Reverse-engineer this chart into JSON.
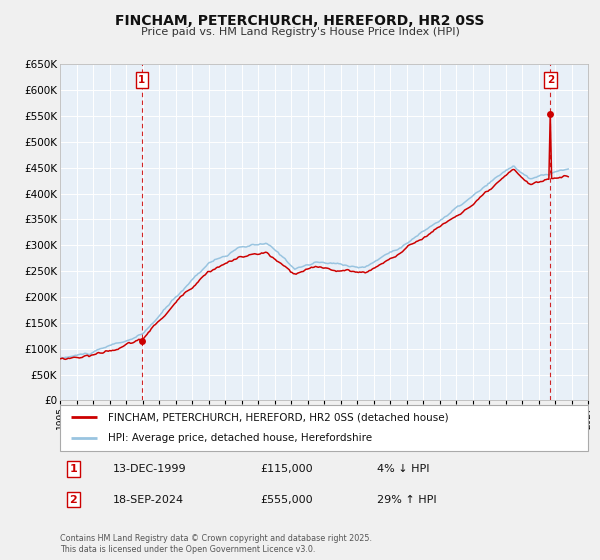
{
  "title": "FINCHAM, PETERCHURCH, HEREFORD, HR2 0SS",
  "subtitle": "Price paid vs. HM Land Registry's House Price Index (HPI)",
  "legend_line1": "FINCHAM, PETERCHURCH, HEREFORD, HR2 0SS (detached house)",
  "legend_line2": "HPI: Average price, detached house, Herefordshire",
  "annotation1_label": "1",
  "annotation1_date": "13-DEC-1999",
  "annotation1_price": "£115,000",
  "annotation1_hpi": "4% ↓ HPI",
  "annotation2_label": "2",
  "annotation2_date": "18-SEP-2024",
  "annotation2_price": "£555,000",
  "annotation2_hpi": "29% ↑ HPI",
  "footer_line1": "Contains HM Land Registry data © Crown copyright and database right 2025.",
  "footer_line2": "This data is licensed under the Open Government Licence v3.0.",
  "price_color": "#cc0000",
  "hpi_color": "#99c4e0",
  "fig_bg_color": "#f0f0f0",
  "plot_bg_color": "#e8f0f8",
  "annotation_box_color": "#cc0000",
  "vline_color": "#cc0000",
  "grid_color": "#ffffff",
  "ylim_max": 650000,
  "ylim_min": 0,
  "xmin": 1995.0,
  "xmax": 2027.0,
  "point1_x": 1999.96,
  "point1_y": 115000,
  "point2_x": 2024.72,
  "point2_y": 555000,
  "yticks": [
    0,
    50000,
    100000,
    150000,
    200000,
    250000,
    300000,
    350000,
    400000,
    450000,
    500000,
    550000,
    600000,
    650000
  ]
}
